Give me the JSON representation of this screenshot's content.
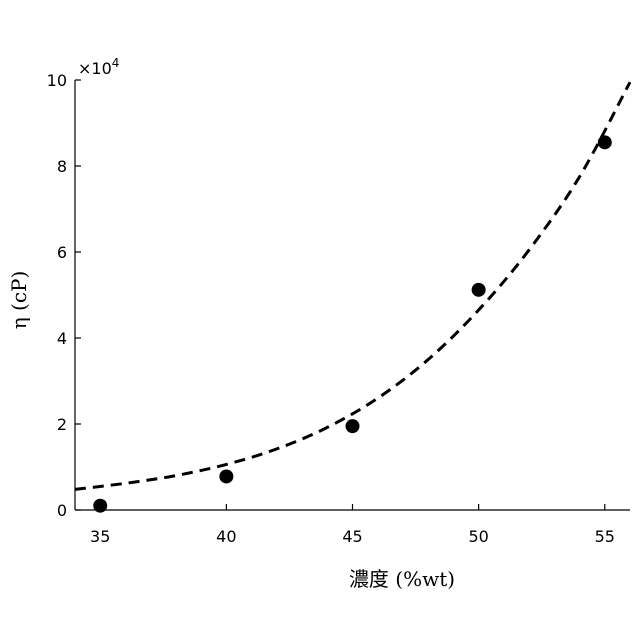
{
  "chart_data": {
    "type": "scatter",
    "xlabel": "濃度 (%wt)",
    "ylabel": "η (cP)",
    "y_multiplier_base": "×10",
    "y_multiplier_exp": "4",
    "xlim": [
      34,
      56
    ],
    "ylim": [
      0,
      10
    ],
    "xticks": [
      "35",
      "40",
      "45",
      "50",
      "55"
    ],
    "yticks": [
      "0",
      "2",
      "4",
      "6",
      "8",
      "10"
    ],
    "grid": false,
    "series": [
      {
        "kind": "points",
        "x": [
          35,
          40,
          45,
          50,
          55
        ],
        "y": [
          0.1,
          0.78,
          1.95,
          5.12,
          8.55
        ],
        "color": "#000000"
      },
      {
        "kind": "fit-curve",
        "style": "dashed",
        "x": [
          34,
          36,
          38,
          40,
          42,
          44,
          46,
          48,
          50,
          52,
          54,
          56
        ],
        "y": [
          0.48,
          0.62,
          0.8,
          1.06,
          1.42,
          1.92,
          2.6,
          3.5,
          4.65,
          6.05,
          7.75,
          9.95
        ],
        "color": "#000000"
      }
    ]
  }
}
